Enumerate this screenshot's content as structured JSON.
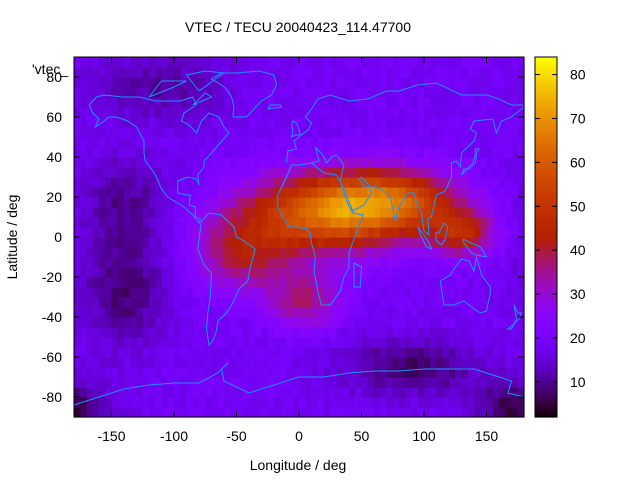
{
  "chart_data": {
    "type": "heatmap",
    "title": "VTEC / TECU 20040423_114.47700",
    "series_label": "'vtec_",
    "xlabel": "Longitude / deg",
    "ylabel": "Latitude / deg",
    "xlim": [
      -180,
      180
    ],
    "ylim": [
      -90,
      90
    ],
    "xticks": [
      -150,
      -100,
      -50,
      0,
      50,
      100,
      150
    ],
    "yticks": [
      -80,
      -60,
      -40,
      -20,
      0,
      20,
      40,
      60,
      80
    ],
    "colorbar": {
      "min": 2,
      "max": 84,
      "ticks": [
        10,
        20,
        30,
        40,
        50,
        60,
        70,
        80
      ],
      "palette": "gnuplot-pm3d"
    },
    "grid_resolution_deg": 5,
    "background_level": 19,
    "features": [
      {
        "type": "peak",
        "lon": 20,
        "lat": 12,
        "value": 58,
        "lon_width": 45,
        "lat_width": 14
      },
      {
        "type": "peak",
        "lon": 75,
        "lat": 18,
        "value": 52,
        "lon_width": 38,
        "lat_width": 11
      },
      {
        "type": "peak",
        "lon": 130,
        "lat": 2,
        "value": 44,
        "lon_width": 18,
        "lat_width": 8
      },
      {
        "type": "peak",
        "lon": -45,
        "lat": -8,
        "value": 38,
        "lon_width": 28,
        "lat_width": 14
      },
      {
        "type": "peak",
        "lon": 5,
        "lat": -32,
        "value": 36,
        "lon_width": 20,
        "lat_width": 10
      },
      {
        "type": "trough",
        "lon": -140,
        "lat": -25,
        "value": 7,
        "lon_width": 25,
        "lat_width": 22
      },
      {
        "type": "trough",
        "lon": -140,
        "lat": 20,
        "value": 10,
        "lon_width": 25,
        "lat_width": 15
      },
      {
        "type": "trough",
        "lon": 90,
        "lat": -65,
        "value": 6,
        "lon_width": 40,
        "lat_width": 10
      },
      {
        "type": "trough",
        "lon": 175,
        "lat": -85,
        "value": 4,
        "lon_width": 25,
        "lat_width": 8
      },
      {
        "type": "trough",
        "lon": -110,
        "lat": 75,
        "value": 10,
        "lon_width": 40,
        "lat_width": 12
      }
    ],
    "coastlines": [
      [
        [
          -168,
          66
        ],
        [
          -162,
          70
        ],
        [
          -156,
          71
        ],
        [
          -141,
          70
        ],
        [
          -128,
          70
        ],
        [
          -115,
          68
        ],
        [
          -95,
          68
        ],
        [
          -85,
          70
        ],
        [
          -82,
          66
        ],
        [
          -92,
          62
        ],
        [
          -94,
          58
        ],
        [
          -88,
          56
        ],
        [
          -82,
          52
        ],
        [
          -78,
          58
        ],
        [
          -72,
          62
        ],
        [
          -64,
          60
        ],
        [
          -60,
          55
        ],
        [
          -56,
          52
        ],
        [
          -66,
          45
        ],
        [
          -70,
          42
        ],
        [
          -76,
          38
        ],
        [
          -76,
          35
        ],
        [
          -81,
          31
        ],
        [
          -80,
          26
        ],
        [
          -82,
          29
        ],
        [
          -89,
          30
        ],
        [
          -97,
          28
        ],
        [
          -97,
          22
        ],
        [
          -90,
          21
        ],
        [
          -87,
          21
        ],
        [
          -88,
          16
        ],
        [
          -83,
          15
        ],
        [
          -83,
          10
        ],
        [
          -79,
          9
        ],
        [
          -80,
          7
        ],
        [
          -85,
          11
        ],
        [
          -92,
          15
        ],
        [
          -105,
          20
        ],
        [
          -110,
          24
        ],
        [
          -114,
          30
        ],
        [
          -118,
          34
        ],
        [
          -123,
          38
        ],
        [
          -124,
          42
        ],
        [
          -124,
          48
        ],
        [
          -130,
          55
        ],
        [
          -137,
          58
        ],
        [
          -146,
          60
        ],
        [
          -152,
          60
        ],
        [
          -158,
          57
        ],
        [
          -163,
          55
        ],
        [
          -160,
          59
        ],
        [
          -165,
          62
        ],
        [
          -168,
          66
        ]
      ],
      [
        [
          -78,
          8
        ],
        [
          -72,
          12
        ],
        [
          -62,
          11
        ],
        [
          -52,
          5
        ],
        [
          -50,
          0
        ],
        [
          -44,
          -2
        ],
        [
          -35,
          -6
        ],
        [
          -39,
          -15
        ],
        [
          -41,
          -22
        ],
        [
          -48,
          -26
        ],
        [
          -53,
          -33
        ],
        [
          -58,
          -38
        ],
        [
          -65,
          -42
        ],
        [
          -66,
          -47
        ],
        [
          -69,
          -52
        ],
        [
          -72,
          -54
        ],
        [
          -74,
          -46
        ],
        [
          -73,
          -38
        ],
        [
          -71,
          -30
        ],
        [
          -70,
          -18
        ],
        [
          -76,
          -14
        ],
        [
          -81,
          -6
        ],
        [
          -80,
          -1
        ],
        [
          -78,
          8
        ]
      ],
      [
        [
          -17,
          21
        ],
        [
          -17,
          15
        ],
        [
          -12,
          9
        ],
        [
          -8,
          5
        ],
        [
          -2,
          5
        ],
        [
          6,
          4
        ],
        [
          9,
          2
        ],
        [
          10,
          -3
        ],
        [
          13,
          -10
        ],
        [
          12,
          -17
        ],
        [
          15,
          -27
        ],
        [
          18,
          -34
        ],
        [
          25,
          -34
        ],
        [
          33,
          -27
        ],
        [
          36,
          -20
        ],
        [
          40,
          -15
        ],
        [
          40,
          -8
        ],
        [
          44,
          -1
        ],
        [
          51,
          11
        ],
        [
          43,
          12
        ],
        [
          38,
          18
        ],
        [
          33,
          28
        ],
        [
          30,
          31
        ],
        [
          20,
          32
        ],
        [
          10,
          37
        ],
        [
          0,
          36
        ],
        [
          -6,
          36
        ],
        [
          -10,
          30
        ],
        [
          -17,
          21
        ]
      ],
      [
        [
          -10,
          37
        ],
        [
          -9,
          43
        ],
        [
          -2,
          44
        ],
        [
          -4,
          48
        ],
        [
          2,
          51
        ],
        [
          8,
          54
        ],
        [
          10,
          57
        ],
        [
          5,
          60
        ],
        [
          10,
          64
        ],
        [
          15,
          69
        ],
        [
          25,
          71
        ],
        [
          40,
          68
        ],
        [
          55,
          69
        ],
        [
          70,
          73
        ],
        [
          80,
          73
        ],
        [
          95,
          76
        ],
        [
          110,
          77
        ],
        [
          130,
          71
        ],
        [
          150,
          71
        ],
        [
          160,
          69
        ],
        [
          170,
          66
        ],
        [
          180,
          66
        ]
      ],
      [
        [
          10,
          37
        ],
        [
          16,
          38
        ],
        [
          13,
          45
        ],
        [
          19,
          41
        ],
        [
          22,
          37
        ],
        [
          26,
          40
        ],
        [
          30,
          41
        ],
        [
          36,
          36
        ],
        [
          34,
          31
        ],
        [
          33,
          28
        ],
        [
          43,
          13
        ],
        [
          52,
          16
        ],
        [
          58,
          22
        ],
        [
          56,
          26
        ],
        [
          50,
          30
        ],
        [
          48,
          29
        ],
        [
          52,
          25
        ],
        [
          57,
          25
        ],
        [
          62,
          25
        ],
        [
          68,
          23
        ],
        [
          73,
          20
        ],
        [
          77,
          8
        ],
        [
          80,
          15
        ],
        [
          87,
          22
        ],
        [
          92,
          22
        ],
        [
          94,
          17
        ],
        [
          98,
          12
        ],
        [
          100,
          3
        ],
        [
          104,
          1
        ],
        [
          103,
          9
        ],
        [
          106,
          10
        ],
        [
          108,
          16
        ],
        [
          110,
          21
        ],
        [
          117,
          23
        ],
        [
          122,
          30
        ],
        [
          122,
          37
        ],
        [
          126,
          38
        ],
        [
          129,
          35
        ],
        [
          130,
          42
        ],
        [
          140,
          48
        ],
        [
          142,
          52
        ],
        [
          137,
          54
        ],
        [
          140,
          58
        ],
        [
          155,
          59
        ],
        [
          158,
          52
        ],
        [
          162,
          58
        ],
        [
          170,
          60
        ],
        [
          178,
          64
        ],
        [
          180,
          65
        ]
      ],
      [
        [
          113,
          -22
        ],
        [
          114,
          -26
        ],
        [
          116,
          -34
        ],
        [
          124,
          -34
        ],
        [
          132,
          -32
        ],
        [
          138,
          -35
        ],
        [
          145,
          -38
        ],
        [
          150,
          -37
        ],
        [
          153,
          -28
        ],
        [
          153,
          -25
        ],
        [
          146,
          -19
        ],
        [
          142,
          -10
        ],
        [
          140,
          -17
        ],
        [
          136,
          -12
        ],
        [
          130,
          -11
        ],
        [
          125,
          -15
        ],
        [
          121,
          -19
        ],
        [
          113,
          -22
        ]
      ],
      [
        [
          -53,
          60
        ],
        [
          -42,
          60
        ],
        [
          -30,
          68
        ],
        [
          -22,
          71
        ],
        [
          -18,
          76
        ],
        [
          -20,
          81
        ],
        [
          -32,
          83
        ],
        [
          -50,
          82
        ],
        [
          -62,
          82
        ],
        [
          -70,
          79
        ],
        [
          -62,
          76
        ],
        [
          -58,
          74
        ],
        [
          -54,
          70
        ],
        [
          -52,
          65
        ],
        [
          -53,
          60
        ]
      ],
      [
        [
          -6,
          50
        ],
        [
          -3,
          51
        ],
        [
          1,
          51
        ],
        [
          0,
          54
        ],
        [
          -2,
          57
        ],
        [
          -5,
          58
        ],
        [
          -6,
          56
        ],
        [
          -5,
          53
        ],
        [
          -6,
          50
        ]
      ],
      [
        [
          130,
          31
        ],
        [
          132,
          34
        ],
        [
          136,
          34
        ],
        [
          141,
          37
        ],
        [
          142,
          40
        ],
        [
          141,
          44
        ],
        [
          144,
          44
        ],
        [
          141,
          41
        ],
        [
          139,
          37
        ],
        [
          136,
          35
        ],
        [
          130,
          31
        ]
      ],
      [
        [
          95,
          5
        ],
        [
          100,
          1
        ],
        [
          104,
          -3
        ],
        [
          106,
          -6
        ],
        [
          102,
          -5
        ],
        [
          98,
          0
        ],
        [
          95,
          5
        ]
      ],
      [
        [
          109,
          2
        ],
        [
          110,
          -2
        ],
        [
          114,
          -4
        ],
        [
          117,
          -1
        ],
        [
          119,
          5
        ],
        [
          116,
          7
        ],
        [
          112,
          2
        ],
        [
          109,
          2
        ]
      ],
      [
        [
          131,
          -1
        ],
        [
          138,
          -3
        ],
        [
          145,
          -5
        ],
        [
          150,
          -10
        ],
        [
          142,
          -9
        ],
        [
          138,
          -8
        ],
        [
          132,
          -3
        ],
        [
          131,
          -1
        ]
      ],
      [
        [
          172,
          -34
        ],
        [
          175,
          -38
        ],
        [
          178,
          -38
        ],
        [
          176,
          -41
        ],
        [
          171,
          -44
        ],
        [
          167,
          -46
        ],
        [
          170,
          -46
        ],
        [
          174,
          -41
        ],
        [
          172,
          -34
        ]
      ],
      [
        [
          44,
          -13
        ],
        [
          50,
          -15
        ],
        [
          49,
          -25
        ],
        [
          44,
          -25
        ],
        [
          44,
          -13
        ]
      ],
      [
        [
          -180,
          -84
        ],
        [
          -160,
          -80
        ],
        [
          -140,
          -76
        ],
        [
          -120,
          -74
        ],
        [
          -100,
          -73
        ],
        [
          -80,
          -73
        ],
        [
          -65,
          -68
        ],
        [
          -57,
          -63
        ],
        [
          -62,
          -66
        ],
        [
          -60,
          -72
        ],
        [
          -40,
          -78
        ],
        [
          -20,
          -74
        ],
        [
          0,
          -70
        ],
        [
          20,
          -70
        ],
        [
          40,
          -68
        ],
        [
          60,
          -67
        ],
        [
          80,
          -67
        ],
        [
          100,
          -66
        ],
        [
          120,
          -66
        ],
        [
          140,
          -66
        ],
        [
          160,
          -70
        ],
        [
          170,
          -72
        ],
        [
          167,
          -78
        ],
        [
          180,
          -80
        ]
      ],
      [
        [
          -80,
          73
        ],
        [
          -60,
          82
        ],
        [
          -75,
          83
        ],
        [
          -90,
          81
        ],
        [
          -80,
          73
        ]
      ],
      [
        [
          -120,
          70
        ],
        [
          -100,
          75
        ],
        [
          -90,
          78
        ],
        [
          -110,
          78
        ],
        [
          -120,
          70
        ]
      ],
      [
        [
          -85,
          66
        ],
        [
          -70,
          70
        ],
        [
          -75,
          72
        ],
        [
          -85,
          66
        ]
      ],
      [
        [
          -25,
          64
        ],
        [
          -14,
          65
        ],
        [
          -15,
          66
        ],
        [
          -23,
          66
        ],
        [
          -25,
          64
        ]
      ]
    ]
  }
}
